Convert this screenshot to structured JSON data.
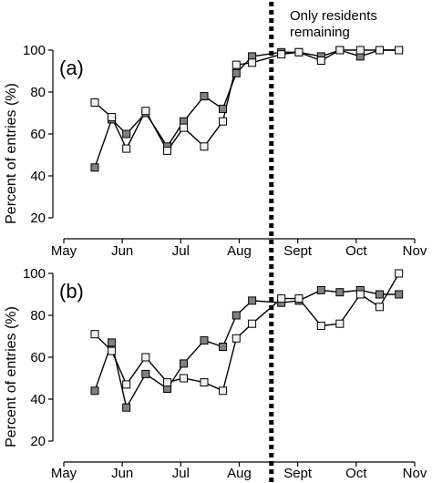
{
  "chart_data": {
    "type": "line",
    "ylabel": "Percent of entries (%)",
    "annotation": "Only residents remaining",
    "annotation_lines": [
      "Only residents",
      "remaining"
    ],
    "divider_month": 8.55,
    "x_ticks": [
      {
        "label": "May",
        "m": 5
      },
      {
        "label": "Jun",
        "m": 6
      },
      {
        "label": "Jul",
        "m": 7
      },
      {
        "label": "Aug",
        "m": 8
      },
      {
        "label": "Sept",
        "m": 9
      },
      {
        "label": "Oct",
        "m": 10
      },
      {
        "label": "Nov",
        "m": 11
      }
    ],
    "xlim": [
      5,
      11
    ],
    "colors": {
      "dark_marker": "#808080",
      "light_marker": "#f2f2f2",
      "line": "#000000"
    },
    "panels": [
      {
        "label": "(a)",
        "ylim": [
          10,
          100
        ],
        "yticks": [
          20,
          40,
          60,
          80,
          100
        ],
        "series": [
          {
            "marker_color": "#808080",
            "x": [
              5.53,
              5.82,
              6.07,
              6.4,
              6.77,
              7.05,
              7.4,
              7.72,
              7.95,
              8.22,
              8.72,
              9.02,
              9.4,
              9.72,
              10.07,
              10.4,
              10.73
            ],
            "y": [
              44,
              67,
              60,
              70,
              54,
              66,
              78,
              72,
              89,
              97,
              99,
              99,
              97,
              100,
              97,
              100,
              100
            ]
          },
          {
            "marker_color": "#f2f2f2",
            "x": [
              5.53,
              5.82,
              6.07,
              6.4,
              6.77,
              7.05,
              7.4,
              7.72,
              7.95,
              8.22,
              8.72,
              9.02,
              9.4,
              9.72,
              10.07,
              10.4,
              10.73
            ],
            "y": [
              75,
              68,
              53,
              71,
              52,
              63,
              54,
              66,
              93,
              94,
              98,
              99,
              95,
              100,
              100,
              100,
              100
            ]
          }
        ]
      },
      {
        "label": "(b)",
        "ylim": [
          10,
          100
        ],
        "yticks": [
          20,
          40,
          60,
          80,
          100
        ],
        "series": [
          {
            "marker_color": "#808080",
            "x": [
              5.53,
              5.82,
              6.07,
              6.4,
              6.77,
              7.05,
              7.4,
              7.72,
              7.95,
              8.22,
              8.72,
              9.02,
              9.4,
              9.72,
              10.07,
              10.4,
              10.73
            ],
            "y": [
              44,
              67,
              36,
              52,
              45,
              57,
              68,
              65,
              80,
              87,
              86,
              87,
              92,
              91,
              92,
              90,
              90
            ]
          },
          {
            "marker_color": "#f2f2f2",
            "x": [
              5.53,
              5.82,
              6.07,
              6.4,
              6.77,
              7.05,
              7.4,
              7.72,
              7.95,
              8.22,
              8.72,
              9.02,
              9.4,
              9.72,
              10.07,
              10.4,
              10.73
            ],
            "y": [
              71,
              63,
              47,
              60,
              48,
              50,
              48,
              44,
              69,
              76,
              88,
              88,
              75,
              76,
              90,
              84,
              100
            ]
          }
        ]
      }
    ]
  }
}
